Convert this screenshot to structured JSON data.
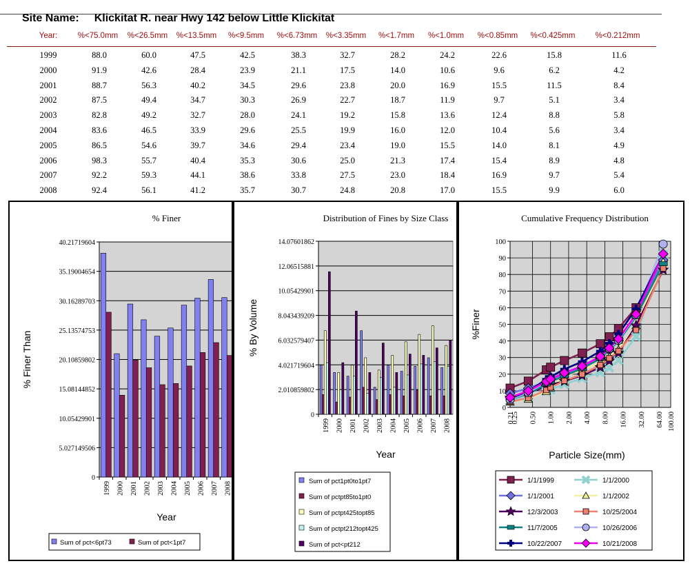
{
  "site": {
    "label": "Site Name:",
    "name": "Klickitat R. near Hwy 142 below Little Klickitat"
  },
  "table": {
    "headers": [
      "Year:",
      "%<75.0mm",
      "%<26.5mm",
      "%<13.5mm",
      "%<9.5mm",
      "%<6.73mm",
      "%<3.35mm",
      "%<1.7mm",
      "%<1.0mm",
      "%<0.85mm",
      "%<0.425mm",
      "%<0.212mm"
    ],
    "rows": [
      [
        "1999",
        "88.0",
        "60.0",
        "47.5",
        "42.5",
        "38.3",
        "32.7",
        "28.2",
        "24.2",
        "22.6",
        "15.8",
        "11.6"
      ],
      [
        "2000",
        "91.9",
        "42.6",
        "28.4",
        "23.9",
        "21.1",
        "17.5",
        "14.0",
        "10.6",
        "9.6",
        "6.2",
        "4.2"
      ],
      [
        "2001",
        "88.7",
        "56.3",
        "40.2",
        "34.5",
        "29.6",
        "23.8",
        "20.0",
        "16.9",
        "15.5",
        "11.5",
        "8.4"
      ],
      [
        "2002",
        "87.5",
        "49.4",
        "34.7",
        "30.3",
        "26.9",
        "22.7",
        "18.7",
        "11.9",
        "9.7",
        "5.1",
        "3.4"
      ],
      [
        "2003",
        "82.8",
        "49.2",
        "32.7",
        "28.0",
        "24.1",
        "19.2",
        "15.8",
        "13.6",
        "12.4",
        "8.8",
        "5.8"
      ],
      [
        "2004",
        "83.6",
        "46.5",
        "33.9",
        "29.6",
        "25.5",
        "19.9",
        "16.0",
        "12.0",
        "10.4",
        "5.6",
        "3.4"
      ],
      [
        "2005",
        "86.5",
        "54.6",
        "39.7",
        "34.6",
        "29.4",
        "23.4",
        "19.0",
        "15.5",
        "14.0",
        "8.1",
        "4.9"
      ],
      [
        "2006",
        "98.3",
        "55.7",
        "40.4",
        "35.3",
        "30.6",
        "25.0",
        "21.3",
        "17.4",
        "15.4",
        "8.9",
        "4.8"
      ],
      [
        "2007",
        "92.2",
        "59.3",
        "44.1",
        "38.6",
        "33.8",
        "27.5",
        "23.0",
        "18.4",
        "16.9",
        "9.7",
        "5.4"
      ],
      [
        "2008",
        "92.4",
        "56.1",
        "41.2",
        "35.7",
        "30.7",
        "24.8",
        "20.8",
        "17.0",
        "15.5",
        "9.9",
        "6.0"
      ]
    ]
  },
  "chart_data": [
    {
      "type": "bar",
      "title": "% Finer",
      "xlabel": "Year",
      "ylabel": "% Finer Than",
      "ylim": [
        0,
        40.21719604
      ],
      "yticks": [
        "0",
        "5.027149506",
        "10.05429901",
        "15.08144852",
        "20.10859802",
        "25.13574753",
        "30.16289703",
        "35.19004654",
        "40.21719604"
      ],
      "categories": [
        "1999",
        "2000",
        "2001",
        "2002",
        "2003",
        "2004",
        "2005",
        "2006",
        "2007",
        "2008"
      ],
      "series": [
        {
          "name": "Sum of pct<6pt73",
          "color": "#8080f0",
          "values": [
            38.3,
            21.1,
            29.6,
            26.9,
            24.1,
            25.5,
            29.4,
            30.6,
            33.8,
            30.7
          ]
        },
        {
          "name": "Sum of pct<1pt7",
          "color": "#802050",
          "values": [
            28.2,
            14.0,
            20.0,
            18.7,
            15.8,
            16.0,
            19.0,
            21.3,
            23.0,
            20.8
          ]
        }
      ],
      "legend": "bottom"
    },
    {
      "type": "bar",
      "title": "Distribution of Fines by Size Class",
      "xlabel": "Year",
      "ylabel": "% By Volume",
      "ylim": [
        0,
        14.07601862
      ],
      "yticks": [
        "0",
        "2.010859802",
        "4.021719604",
        "6.032579407",
        "8.043439209",
        "10.05429901",
        "12.06515881",
        "14.07601862"
      ],
      "categories": [
        "1999",
        "2000",
        "2001",
        "2002",
        "2003",
        "2004",
        "2005",
        "2006",
        "2007",
        "2008"
      ],
      "series": [
        {
          "name": "Sum of pct1pt0to1pt7",
          "color": "#8080f0",
          "values": [
            4.0,
            3.4,
            3.1,
            6.8,
            2.2,
            4.0,
            3.5,
            3.9,
            4.6,
            3.8
          ]
        },
        {
          "name": "Sum of pctpt85to1pt0",
          "color": "#802050",
          "values": [
            1.6,
            1.0,
            1.4,
            2.2,
            1.2,
            1.6,
            1.5,
            2.0,
            1.5,
            1.5
          ]
        },
        {
          "name": "Sum of pctpt425topt85",
          "color": "#ffffc0",
          "values": [
            6.8,
            3.4,
            4.0,
            4.6,
            3.6,
            4.8,
            5.9,
            6.5,
            7.2,
            5.6
          ]
        },
        {
          "name": "Sum of pctpt212topt425",
          "color": "#c0f0f0",
          "values": [
            4.2,
            2.0,
            3.1,
            1.7,
            3.0,
            2.2,
            3.2,
            4.1,
            4.3,
            3.9
          ]
        },
        {
          "name": "Sum of pct<pt212",
          "color": "#500060",
          "values": [
            11.6,
            4.2,
            8.4,
            3.4,
            5.8,
            3.4,
            4.9,
            4.8,
            5.4,
            6.0
          ]
        }
      ],
      "legend": "bottom"
    },
    {
      "type": "line",
      "title": "Cumulative Frequency Distribution",
      "xlabel": "Particle Size(mm)",
      "ylabel": "%Finer",
      "ylim": [
        0,
        100
      ],
      "yticks": [
        "0",
        "10",
        "20",
        "30",
        "40",
        "50",
        "60",
        "70",
        "80",
        "90",
        "100"
      ],
      "xticks": [
        "0.21",
        "0.25",
        "0.50",
        "1.00",
        "2.00",
        "4.00",
        "8.00",
        "16.00",
        "32.00",
        "64.00",
        "100.00"
      ],
      "x": [
        0.212,
        0.425,
        0.85,
        1.0,
        1.7,
        3.35,
        6.73,
        9.5,
        13.5,
        26.5,
        75.0
      ],
      "series": [
        {
          "name": "1/1/1999",
          "color": "#802050",
          "marker": "square",
          "values": [
            11.6,
            15.8,
            22.6,
            24.2,
            28.2,
            32.7,
            38.3,
            42.5,
            47.5,
            60.0,
            88.0
          ]
        },
        {
          "name": "1/1/2000",
          "color": "#90d0d0",
          "marker": "x",
          "values": [
            4.2,
            6.2,
            9.6,
            10.6,
            14.0,
            17.5,
            21.1,
            23.9,
            28.4,
            42.6,
            91.9
          ]
        },
        {
          "name": "1/1/2001",
          "color": "#7070e0",
          "marker": "diamond",
          "values": [
            8.4,
            11.5,
            15.5,
            16.9,
            20.0,
            23.8,
            29.6,
            34.5,
            40.2,
            56.3,
            88.7
          ]
        },
        {
          "name": "1/1/2002",
          "color": "#f0f0a0",
          "marker": "triangle",
          "values": [
            3.4,
            5.1,
            9.7,
            11.9,
            18.7,
            22.7,
            26.9,
            30.3,
            34.7,
            49.4,
            87.5
          ]
        },
        {
          "name": "12/3/2003",
          "color": "#500060",
          "marker": "star",
          "values": [
            5.8,
            8.8,
            12.4,
            13.6,
            15.8,
            19.2,
            24.1,
            28.0,
            32.7,
            49.2,
            82.8
          ]
        },
        {
          "name": "10/25/2004",
          "color": "#f08070",
          "marker": "smallsquare",
          "values": [
            3.4,
            5.6,
            10.4,
            12.0,
            16.0,
            19.9,
            25.5,
            29.6,
            33.9,
            46.5,
            83.6
          ]
        },
        {
          "name": "11/7/2005",
          "color": "#108080",
          "marker": "bar",
          "values": [
            4.9,
            8.1,
            14.0,
            15.5,
            19.0,
            23.4,
            29.4,
            34.6,
            39.7,
            54.6,
            86.5
          ]
        },
        {
          "name": "10/26/2006",
          "color": "#b0b0f0",
          "marker": "circle",
          "values": [
            4.8,
            8.9,
            15.4,
            17.4,
            21.3,
            25.0,
            30.6,
            35.3,
            40.4,
            55.7,
            98.3
          ]
        },
        {
          "name": "10/22/2007",
          "color": "#000080",
          "marker": "plus",
          "values": [
            5.4,
            9.7,
            16.9,
            18.4,
            23.0,
            27.5,
            33.8,
            38.6,
            44.1,
            59.3,
            92.2
          ]
        },
        {
          "name": "10/21/2008",
          "color": "#f000f0",
          "marker": "diamond",
          "values": [
            6.0,
            9.9,
            15.5,
            17.0,
            20.8,
            24.8,
            30.7,
            35.7,
            41.2,
            56.1,
            92.4
          ]
        }
      ],
      "legend": "bottom"
    }
  ]
}
